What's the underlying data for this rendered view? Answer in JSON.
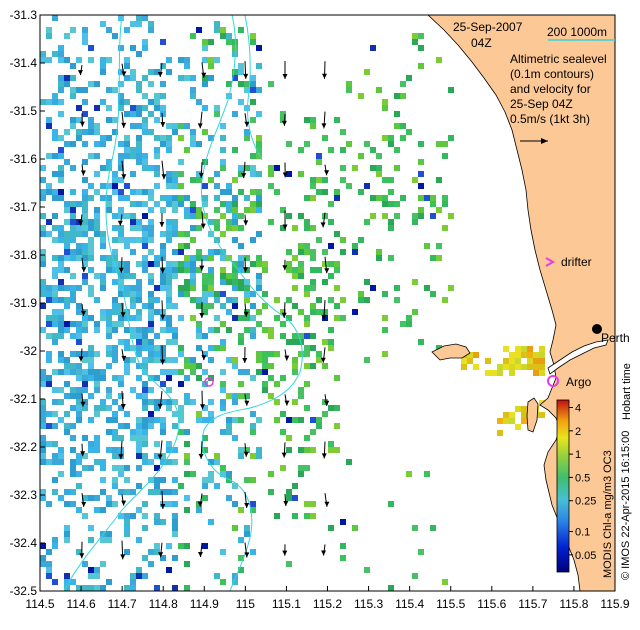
{
  "header": {
    "date": "25-Sep-2007",
    "time": "04Z"
  },
  "legend": {
    "isobath_label": "200  1000m",
    "description_lines": [
      "Altimetric sealevel",
      "(0.1m contours)",
      "and velocity for",
      "25-Sep 04Z",
      "0.5m/s (1kt 3h)"
    ]
  },
  "places": {
    "perth": "Perth",
    "hobart": "Hobart time",
    "drifter": "drifter",
    "argo": "Argo"
  },
  "colorbar": {
    "title": "MODIS Chl-a mg/m3 OC3",
    "ticks": [
      "0.05",
      "0.1",
      "0.25",
      "0.5",
      "1",
      "2",
      "4"
    ]
  },
  "credit": "© IMOS 22-Apr-2015 16:15:00",
  "axes": {
    "xlim": [
      114.5,
      115.9
    ],
    "ylim": [
      -32.5,
      -31.3
    ],
    "x_ticks": [
      "114.5",
      "114.6",
      "114.7",
      "114.8",
      "114.9",
      "115",
      "115.1",
      "115.2",
      "115.3",
      "115.4",
      "115.5",
      "115.6",
      "115.7",
      "115.8",
      "115.9"
    ],
    "y_ticks": [
      "-31.3",
      "-31.4",
      "-31.5",
      "-31.6",
      "-31.7",
      "-31.8",
      "-31.9",
      "-32",
      "-32.1",
      "-32.2",
      "-32.3",
      "-32.4",
      "-32.5"
    ]
  },
  "markers": {
    "perth": [
      115.86,
      -31.95
    ],
    "drifter": [
      115.75,
      -31.81
    ],
    "argo": [
      115.75,
      -32.08
    ],
    "float": [
      114.91,
      -32.07
    ]
  },
  "colors": {
    "land": "#fcc896",
    "isobath": "#33d6dc",
    "marker": "#e63ce6",
    "chl_low": "#00007e",
    "chl_mid": "#4fb5e6",
    "chl_high": "#de7a00"
  }
}
